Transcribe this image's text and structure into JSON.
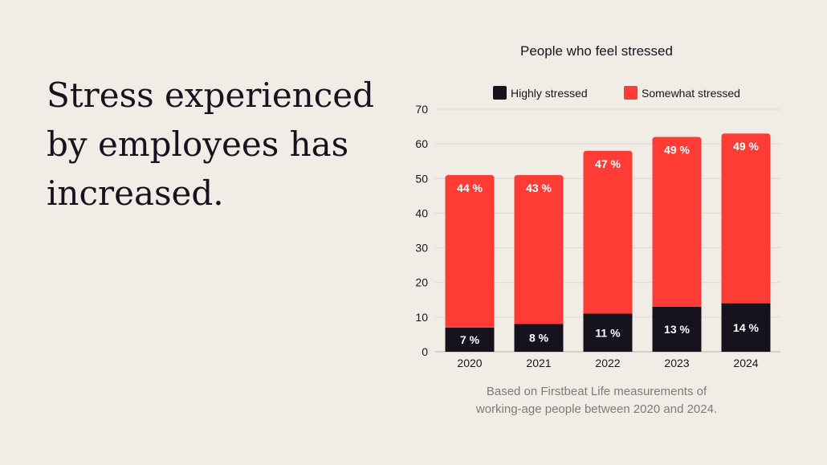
{
  "headline": {
    "line1": "Stress experienced",
    "line2": "by employees has",
    "line3": "increased."
  },
  "chart_data": {
    "type": "bar",
    "stacked": true,
    "title": "People who feel stressed",
    "categories": [
      "2020",
      "2021",
      "2022",
      "2023",
      "2024"
    ],
    "series": [
      {
        "name": "Highly stressed",
        "color": "#16131f",
        "values": [
          7,
          8,
          11,
          13,
          14
        ],
        "labels": [
          "7 %",
          "8 %",
          "11 %",
          "13 %",
          "14 %"
        ]
      },
      {
        "name": "Somewhat stressed",
        "color": "#ff3b35",
        "values": [
          44,
          43,
          47,
          49,
          49
        ],
        "labels": [
          "44 %",
          "43 %",
          "47 %",
          "49 %",
          "49 %"
        ]
      }
    ],
    "ylim": [
      0,
      70
    ],
    "yticks": [
      "0",
      "10",
      "20",
      "30",
      "40",
      "50",
      "60",
      "70"
    ],
    "grid": true,
    "legend": "top"
  },
  "footnote": {
    "line1": "Based on Firstbeat Life measurements of",
    "line2": "working-age people between 2020 and 2024."
  }
}
